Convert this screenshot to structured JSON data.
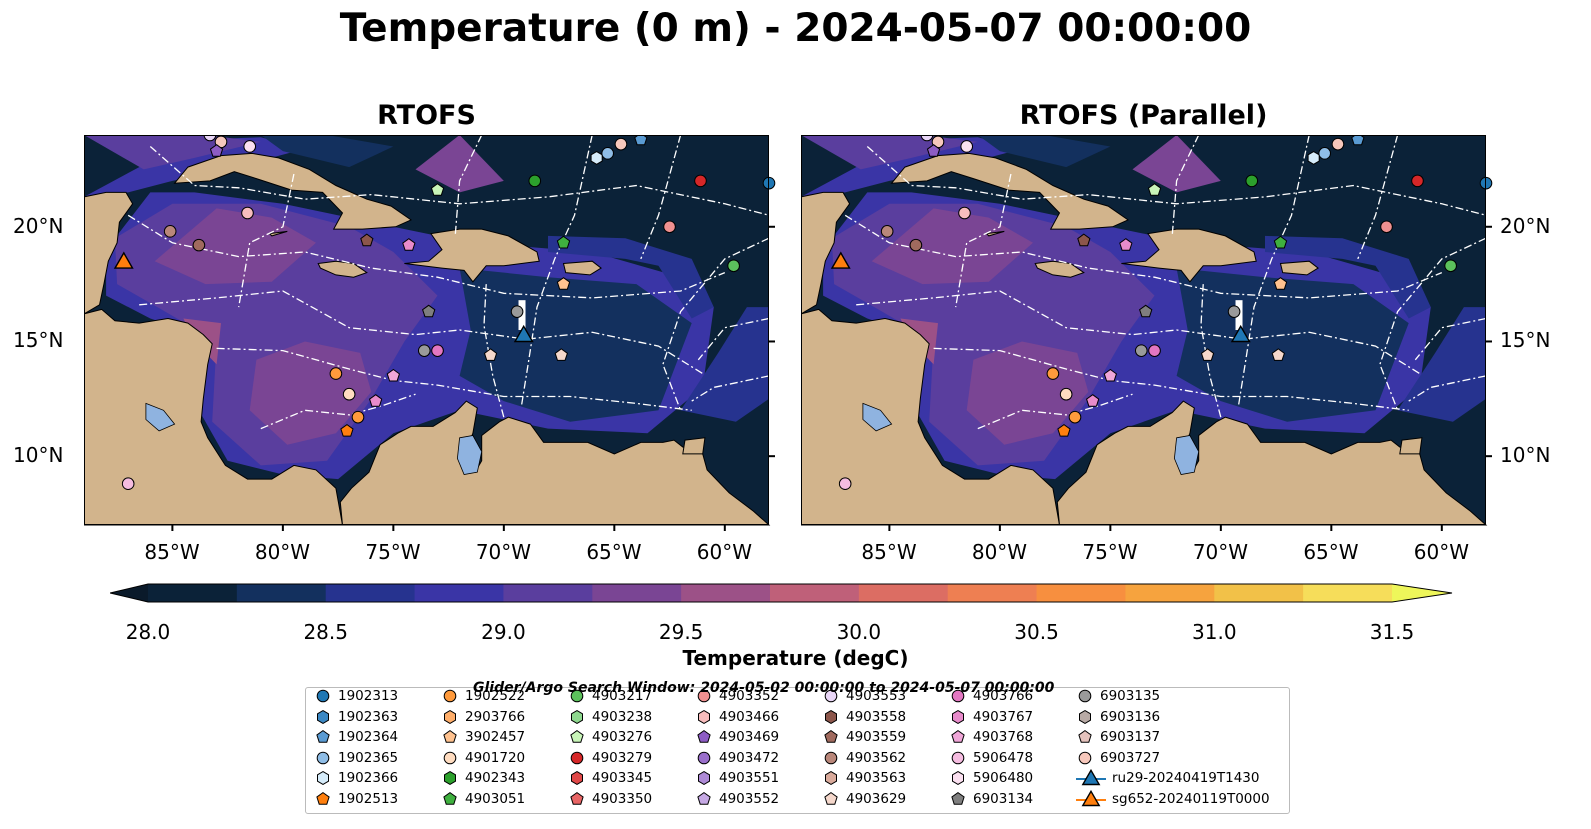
{
  "title": "Temperature (0 m) - 2024-05-07 00:00:00",
  "panels": [
    {
      "title": "RTOFS"
    },
    {
      "title": "RTOFS (Parallel)"
    }
  ],
  "axes": {
    "lon_labels": [
      "85°W",
      "80°W",
      "75°W",
      "70°W",
      "65°W",
      "60°W"
    ],
    "lat_labels": [
      "20°N",
      "15°N",
      "10°N"
    ],
    "lon_range": [
      -89,
      -58
    ],
    "lat_range": [
      7,
      24
    ]
  },
  "colorbar": {
    "label": "Temperature (degC)",
    "ticks": [
      "28.0",
      "28.5",
      "29.0",
      "29.5",
      "30.0",
      "30.5",
      "31.0",
      "31.5"
    ],
    "colors": [
      "#0b2238",
      "#13305e",
      "#26338f",
      "#3a35a6",
      "#5a3e9e",
      "#7a4594",
      "#9c5187",
      "#bf6079",
      "#dc6d63",
      "#ee7f52",
      "#f78f3f",
      "#f6a33e",
      "#f2c148",
      "#f6dd5a"
    ],
    "extend_low": "#0a1a2a",
    "extend_high": "#eef65a"
  },
  "legend_title": "Glider/Argo Search Window: 2024-05-02 00:00:00 to 2024-05-07 00:00:00",
  "legend_items": [
    {
      "label": "1902313",
      "shape": "circle",
      "color": "#1f77b4"
    },
    {
      "label": "1902363",
      "shape": "hexagon",
      "color": "#3b88c4"
    },
    {
      "label": "1902364",
      "shape": "pentagon",
      "color": "#5a9bd3"
    },
    {
      "label": "1902365",
      "shape": "circle",
      "color": "#8fbde6"
    },
    {
      "label": "1902366",
      "shape": "hexagon",
      "color": "#d6ecfa"
    },
    {
      "label": "1902513",
      "shape": "pentagon",
      "color": "#ff7f0e"
    },
    {
      "label": "1902522",
      "shape": "circle",
      "color": "#ff9a3c"
    },
    {
      "label": "2903766",
      "shape": "hexagon",
      "color": "#ffae6a"
    },
    {
      "label": "3902457",
      "shape": "pentagon",
      "color": "#ffc28f"
    },
    {
      "label": "4901720",
      "shape": "circle",
      "color": "#ffdcc0"
    },
    {
      "label": "4902343",
      "shape": "hexagon",
      "color": "#2ca02c"
    },
    {
      "label": "4903051",
      "shape": "pentagon",
      "color": "#3fb03f"
    },
    {
      "label": "4903217",
      "shape": "circle",
      "color": "#5cc15c"
    },
    {
      "label": "4903238",
      "shape": "hexagon",
      "color": "#8ed88e"
    },
    {
      "label": "4903276",
      "shape": "pentagon",
      "color": "#c8f5b8"
    },
    {
      "label": "4903279",
      "shape": "circle",
      "color": "#d62728"
    },
    {
      "label": "4903345",
      "shape": "hexagon",
      "color": "#e04848"
    },
    {
      "label": "4903350",
      "shape": "pentagon",
      "color": "#e86565"
    },
    {
      "label": "4903352",
      "shape": "circle",
      "color": "#f09090"
    },
    {
      "label": "4903466",
      "shape": "hexagon",
      "color": "#f8bdbd"
    },
    {
      "label": "4903469",
      "shape": "pentagon",
      "color": "#8d5cc4"
    },
    {
      "label": "4903472",
      "shape": "circle",
      "color": "#9a6fcb"
    },
    {
      "label": "4903551",
      "shape": "hexagon",
      "color": "#ae8ad6"
    },
    {
      "label": "4903552",
      "shape": "pentagon",
      "color": "#c6a9e4"
    },
    {
      "label": "4903553",
      "shape": "circle",
      "color": "#e9d6f7"
    },
    {
      "label": "4903558",
      "shape": "hexagon",
      "color": "#8c564b"
    },
    {
      "label": "4903559",
      "shape": "pentagon",
      "color": "#a06a5e"
    },
    {
      "label": "4903562",
      "shape": "circle",
      "color": "#b9877a"
    },
    {
      "label": "4903563",
      "shape": "hexagon",
      "color": "#d9aa9b"
    },
    {
      "label": "4903629",
      "shape": "pentagon",
      "color": "#f5d8cc"
    },
    {
      "label": "4903766",
      "shape": "circle",
      "color": "#e377c2"
    },
    {
      "label": "4903767",
      "shape": "hexagon",
      "color": "#e88bcb"
    },
    {
      "label": "4903768",
      "shape": "pentagon",
      "color": "#f0a6d8"
    },
    {
      "label": "5906478",
      "shape": "circle",
      "color": "#f5bce0"
    },
    {
      "label": "5906480",
      "shape": "hexagon",
      "color": "#fbe0f0"
    },
    {
      "label": "6903134",
      "shape": "pentagon",
      "color": "#7f7f7f"
    },
    {
      "label": "6903135",
      "shape": "circle",
      "color": "#9a9a9a"
    },
    {
      "label": "6903136",
      "shape": "hexagon",
      "color": "#b8aaa5"
    },
    {
      "label": "6903137",
      "shape": "pentagon",
      "color": "#e5c3bd"
    },
    {
      "label": "6903727",
      "shape": "circle",
      "color": "#f7c8bc"
    },
    {
      "label": "ru29-20240419T1430",
      "shape": "triangle-line",
      "color": "#1f77b4"
    },
    {
      "label": "sg652-20240119T0000",
      "shape": "triangle-line",
      "color": "#ff7f0e"
    }
  ],
  "markers": [
    {
      "lon": -87.2,
      "lat": 18.5,
      "shape": "triangle",
      "color": "#ff7f0e"
    },
    {
      "lon": -69.1,
      "lat": 15.3,
      "shape": "triangle",
      "color": "#1f77b4"
    },
    {
      "lon": -83.3,
      "lat": 24.0,
      "shape": "circle",
      "color": "#e9d6f7"
    },
    {
      "lon": -82.8,
      "lat": 23.7,
      "shape": "circle",
      "color": "#f7c8bc"
    },
    {
      "lon": -83.0,
      "lat": 23.3,
      "shape": "pentagon",
      "color": "#8d5cc4"
    },
    {
      "lon": -81.5,
      "lat": 23.5,
      "shape": "circle",
      "color": "#fbe0f0"
    },
    {
      "lon": -81.6,
      "lat": 20.6,
      "shape": "circle",
      "color": "#f8bdbd"
    },
    {
      "lon": -85.1,
      "lat": 19.8,
      "shape": "circle",
      "color": "#b9877a"
    },
    {
      "lon": -83.8,
      "lat": 19.2,
      "shape": "circle",
      "color": "#a06a5e"
    },
    {
      "lon": -76.2,
      "lat": 19.4,
      "shape": "pentagon",
      "color": "#8c564b"
    },
    {
      "lon": -74.3,
      "lat": 19.2,
      "shape": "pentagon",
      "color": "#e88bcb"
    },
    {
      "lon": -73.0,
      "lat": 21.6,
      "shape": "pentagon",
      "color": "#c8f5b8"
    },
    {
      "lon": -68.6,
      "lat": 22.0,
      "shape": "circle",
      "color": "#2ca02c"
    },
    {
      "lon": -67.3,
      "lat": 19.3,
      "shape": "pentagon",
      "color": "#3fb03f"
    },
    {
      "lon": -65.8,
      "lat": 23.0,
      "shape": "hexagon",
      "color": "#d6ecfa"
    },
    {
      "lon": -65.3,
      "lat": 23.2,
      "shape": "circle",
      "color": "#8fbde6"
    },
    {
      "lon": -64.7,
      "lat": 23.6,
      "shape": "circle",
      "color": "#f7c8bc"
    },
    {
      "lon": -63.8,
      "lat": 23.8,
      "shape": "pentagon",
      "color": "#5a9bd3"
    },
    {
      "lon": -62.5,
      "lat": 20.0,
      "shape": "circle",
      "color": "#f09090"
    },
    {
      "lon": -61.1,
      "lat": 22.0,
      "shape": "circle",
      "color": "#d62728"
    },
    {
      "lon": -59.6,
      "lat": 18.3,
      "shape": "circle",
      "color": "#5cc15c"
    },
    {
      "lon": -58.0,
      "lat": 21.9,
      "shape": "circle",
      "color": "#1f77b4"
    },
    {
      "lon": -67.3,
      "lat": 17.5,
      "shape": "pentagon",
      "color": "#ffc28f"
    },
    {
      "lon": -69.4,
      "lat": 16.3,
      "shape": "circle",
      "color": "#9a9a9a"
    },
    {
      "lon": -73.4,
      "lat": 16.3,
      "shape": "pentagon",
      "color": "#7f7f7f"
    },
    {
      "lon": -73.6,
      "lat": 14.6,
      "shape": "circle",
      "color": "#9a9a9a"
    },
    {
      "lon": -73.0,
      "lat": 14.6,
      "shape": "circle",
      "color": "#e377c2"
    },
    {
      "lon": -70.6,
      "lat": 14.4,
      "shape": "pentagon",
      "color": "#f5d8cc"
    },
    {
      "lon": -67.4,
      "lat": 14.4,
      "shape": "pentagon",
      "color": "#f5d8cc"
    },
    {
      "lon": -75.0,
      "lat": 13.5,
      "shape": "pentagon",
      "color": "#f0a6d8"
    },
    {
      "lon": -77.6,
      "lat": 13.6,
      "shape": "circle",
      "color": "#ff9a3c"
    },
    {
      "lon": -77.0,
      "lat": 12.7,
      "shape": "circle",
      "color": "#ffdcc0"
    },
    {
      "lon": -75.8,
      "lat": 12.4,
      "shape": "pentagon",
      "color": "#e88bcb"
    },
    {
      "lon": -76.6,
      "lat": 11.7,
      "shape": "circle",
      "color": "#ff9a3c"
    },
    {
      "lon": -77.1,
      "lat": 11.1,
      "shape": "pentagon",
      "color": "#ff7f0e"
    },
    {
      "lon": -87.0,
      "lat": 8.8,
      "shape": "circle",
      "color": "#f5bce0"
    }
  ]
}
